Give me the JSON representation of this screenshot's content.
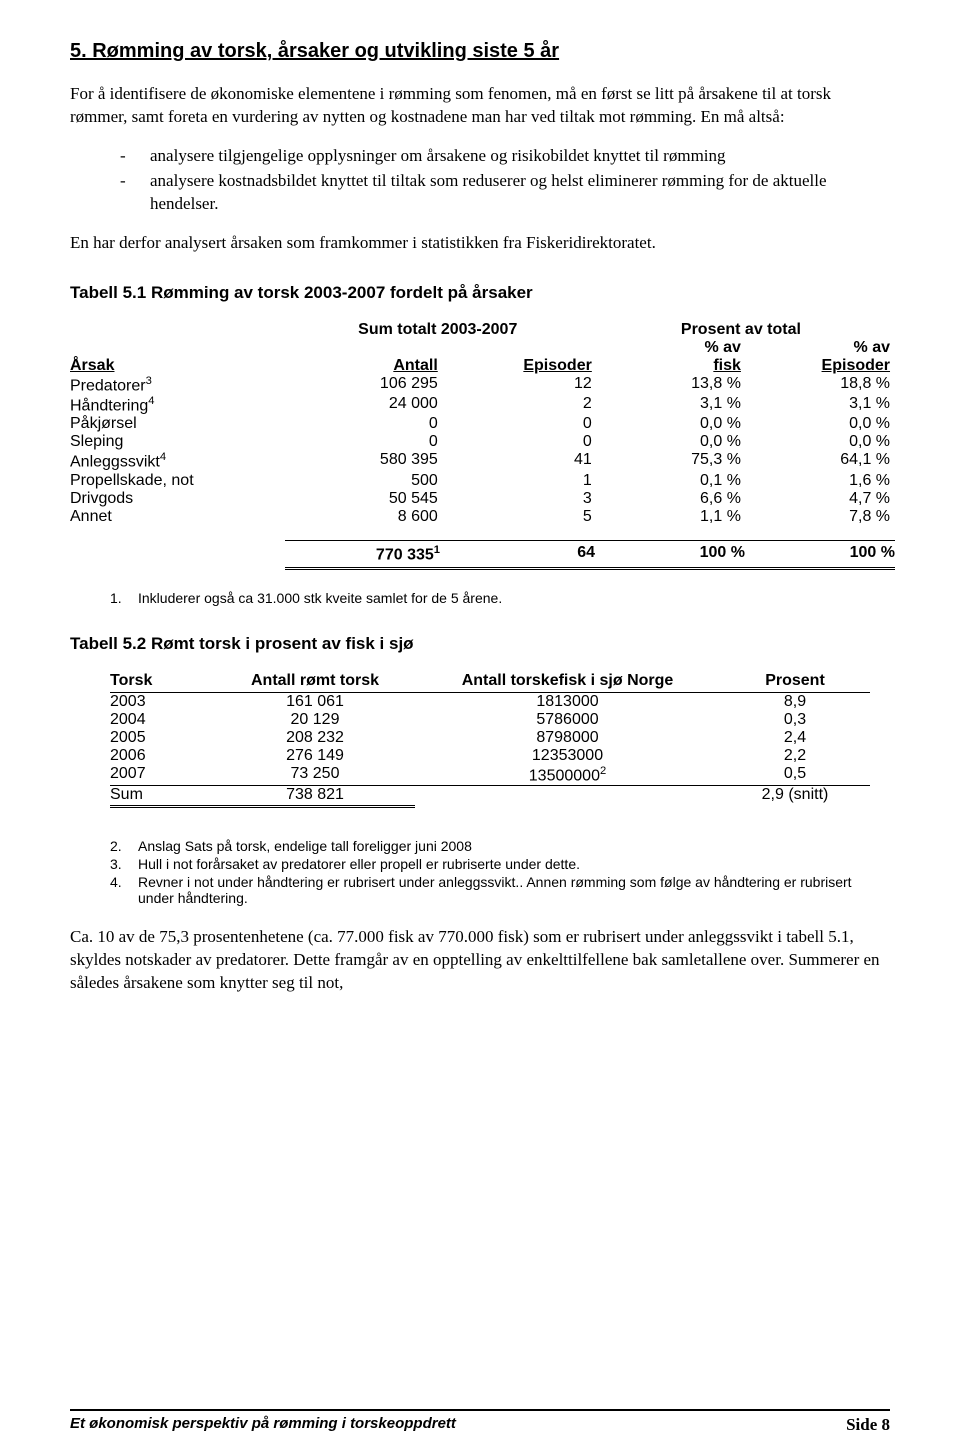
{
  "section_title": "5. Rømming av torsk, årsaker og utvikling siste 5 år",
  "para1": "For å identifisere de økonomiske elementene i rømming som fenomen, må en først se litt på årsakene til at torsk rømmer, samt foreta en vurdering av nytten og kostnadene man har ved tiltak mot rømming. En må altså:",
  "bullets": [
    "analysere tilgjengelige opplysninger om årsakene og risikobildet knyttet til rømming",
    "analysere kostnadsbildet knyttet til tiltak som reduserer og helst eliminerer rømming for de aktuelle hendelser."
  ],
  "para2": "En har derfor analysert årsaken som framkommer i statistikken fra Fiskeridirektoratet.",
  "table1": {
    "title": "Tabell 5.1 Rømming av torsk 2003-2007 fordelt på årsaker",
    "sum_header": "Sum totalt 2003-2007",
    "pct_header": "Prosent av total",
    "col_arsak": "Årsak",
    "col_antall": "Antall",
    "col_episoder": "Episoder",
    "col_pct_fisk_top": "% av",
    "col_pct_fisk": "fisk",
    "col_pct_ep_top": "% av",
    "col_pct_ep": "Episoder",
    "rows": [
      {
        "arsak": "Predatorer",
        "sup": "3",
        "antall": "106 295",
        "ep": "12",
        "pf": "13,8 %",
        "pe": "18,8 %"
      },
      {
        "arsak": "Håndtering",
        "sup": "4",
        "antall": "24 000",
        "ep": "2",
        "pf": "3,1 %",
        "pe": "3,1 %"
      },
      {
        "arsak": "Påkjørsel",
        "sup": "",
        "antall": "0",
        "ep": "0",
        "pf": "0,0 %",
        "pe": "0,0 %"
      },
      {
        "arsak": "Sleping",
        "sup": "",
        "antall": "0",
        "ep": "0",
        "pf": "0,0 %",
        "pe": "0,0 %"
      },
      {
        "arsak": "Anleggssvikt",
        "sup": "4",
        "antall": "580 395",
        "ep": "41",
        "pf": "75,3 %",
        "pe": "64,1 %"
      },
      {
        "arsak": "Propellskade, not",
        "sup": "",
        "antall": "500",
        "ep": "1",
        "pf": "0,1 %",
        "pe": "1,6 %"
      },
      {
        "arsak": "Drivgods",
        "sup": "",
        "antall": "50 545",
        "ep": "3",
        "pf": "6,6 %",
        "pe": "4,7 %"
      },
      {
        "arsak": "Annet",
        "sup": "",
        "antall": "8 600",
        "ep": "5",
        "pf": "1,1 %",
        "pe": "7,8 %"
      }
    ],
    "total": {
      "antall": "770 335",
      "sup": "1",
      "ep": "64",
      "pf": "100 %",
      "pe": "100 %"
    }
  },
  "note1": "Inkluderer også ca 31.000 stk kveite samlet for de 5 årene.",
  "table2": {
    "title": "Tabell 5.2 Rømt torsk i prosent av fisk i sjø",
    "col0": "Torsk",
    "col1": "Antall rømt torsk",
    "col2": "Antall torskefisk i sjø Norge",
    "col3": "Prosent",
    "rows": [
      {
        "y": "2003",
        "a": "161 061",
        "b": "1813000",
        "p": "8,9"
      },
      {
        "y": "2004",
        "a": "20 129",
        "b": "5786000",
        "p": "0,3"
      },
      {
        "y": "2005",
        "a": "208 232",
        "b": "8798000",
        "p": "2,4"
      },
      {
        "y": "2006",
        "a": "276 149",
        "b": "12353000",
        "p": "2,2"
      }
    ],
    "row_last": {
      "y": "2007",
      "a": "73 250",
      "b": "13500000",
      "bsup": "2",
      "p": "0,5"
    },
    "sum": {
      "y": "Sum",
      "a": "738 821",
      "b": "",
      "p": "2,9 (snitt)"
    }
  },
  "notes2": [
    {
      "n": "2.",
      "t": " Anslag Sats på torsk, endelige tall foreligger juni 2008"
    },
    {
      "n": "3.",
      "t": "Hull i not forårsaket av predatorer eller propell er rubriserte under dette."
    },
    {
      "n": "4.",
      "t": "Revner i not under håndtering er rubrisert under anleggssvikt.. Annen rømming som følge av håndtering er rubrisert under håndtering."
    }
  ],
  "para3": "Ca. 10 av de 75,3 prosentenhetene (ca. 77.000 fisk av 770.000 fisk) som er rubrisert under anleggssvikt i tabell 5.1, skyldes notskader av predatorer. Dette framgår av en opptelling av enkelttilfellene bak samletallene over. Summerer en således årsakene som knytter seg til not,",
  "footer_left": "Et økonomisk perspektiv på rømming i torskeoppdrett",
  "footer_right": "Side 8"
}
